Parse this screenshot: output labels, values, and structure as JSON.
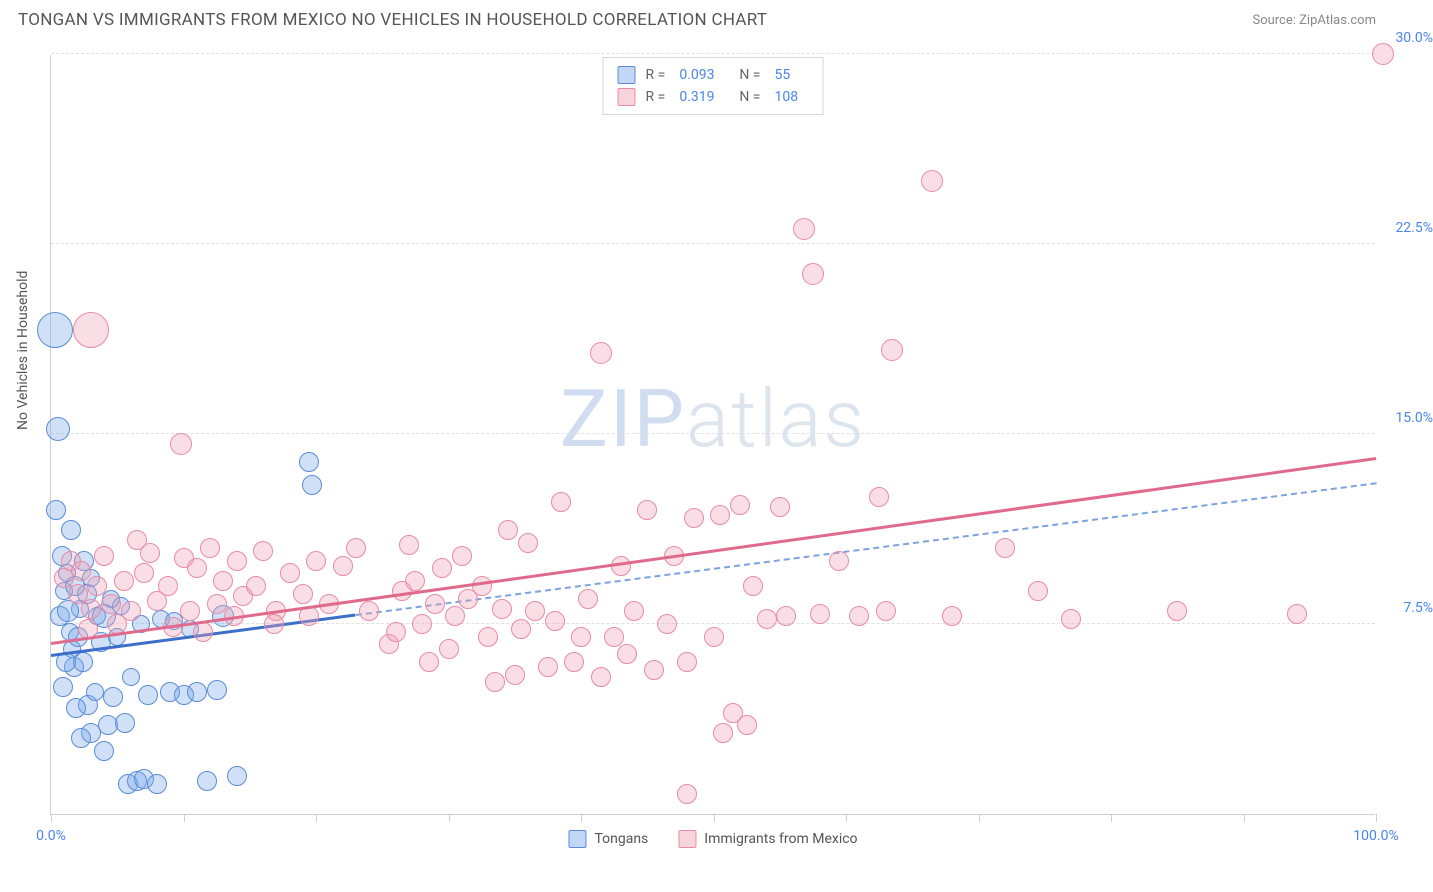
{
  "header": {
    "title": "TONGAN VS IMMIGRANTS FROM MEXICO NO VEHICLES IN HOUSEHOLD CORRELATION CHART",
    "source": "Source: ZipAtlas.com"
  },
  "chart": {
    "type": "scatter",
    "y_axis_title": "No Vehicles in Household",
    "xlim": [
      0,
      100
    ],
    "ylim": [
      0,
      30
    ],
    "x_ticks": [
      0,
      10,
      20,
      30,
      40,
      50,
      60,
      70,
      80,
      90,
      100
    ],
    "x_tick_labels": {
      "0": "0.0%",
      "100": "100.0%"
    },
    "y_ticks": [
      7.5,
      15.0,
      22.5,
      30.0
    ],
    "y_tick_labels": [
      "7.5%",
      "15.0%",
      "22.5%",
      "30.0%"
    ],
    "grid_color": "#e0e0e0",
    "background_color": "#ffffff",
    "series": [
      {
        "name": "Tongans",
        "color_fill": "rgba(118,166,232,0.35)",
        "color_stroke": "#5b8dd6",
        "R": 0.093,
        "N": 55,
        "trend": {
          "x1": 0,
          "y1": 6.2,
          "x2": 23,
          "y2": 7.8,
          "style": "solid",
          "color": "#3b6fc9",
          "width": 2.5
        },
        "trend_extended": {
          "x1": 23,
          "y1": 7.8,
          "x2": 100,
          "y2": 13.0,
          "style": "dashed",
          "color": "#7ba3e0",
          "width": 2
        },
        "points": [
          {
            "x": 0.5,
            "y": 15.2,
            "r": 12
          },
          {
            "x": 0.3,
            "y": 19.1,
            "r": 18
          },
          {
            "x": 0.8,
            "y": 10.2,
            "r": 10
          },
          {
            "x": 1.0,
            "y": 8.8,
            "r": 9
          },
          {
            "x": 1.2,
            "y": 9.5,
            "r": 9
          },
          {
            "x": 1.4,
            "y": 7.2,
            "r": 9
          },
          {
            "x": 1.6,
            "y": 6.5,
            "r": 9
          },
          {
            "x": 1.7,
            "y": 5.8,
            "r": 10
          },
          {
            "x": 2.0,
            "y": 7.0,
            "r": 10
          },
          {
            "x": 2.2,
            "y": 8.1,
            "r": 9
          },
          {
            "x": 2.4,
            "y": 6.0,
            "r": 10
          },
          {
            "x": 2.8,
            "y": 4.3,
            "r": 10
          },
          {
            "x": 3.0,
            "y": 3.2,
            "r": 10
          },
          {
            "x": 3.3,
            "y": 4.8,
            "r": 9
          },
          {
            "x": 3.5,
            "y": 7.8,
            "r": 9
          },
          {
            "x": 3.8,
            "y": 6.8,
            "r": 10
          },
          {
            "x": 4.0,
            "y": 2.5,
            "r": 10
          },
          {
            "x": 4.3,
            "y": 3.5,
            "r": 10
          },
          {
            "x": 4.7,
            "y": 4.6,
            "r": 10
          },
          {
            "x": 5.0,
            "y": 7.0,
            "r": 9
          },
          {
            "x": 5.3,
            "y": 8.2,
            "r": 9
          },
          {
            "x": 5.8,
            "y": 1.2,
            "r": 10
          },
          {
            "x": 6.0,
            "y": 5.4,
            "r": 9
          },
          {
            "x": 6.5,
            "y": 1.3,
            "r": 10
          },
          {
            "x": 1.5,
            "y": 11.2,
            "r": 10
          },
          {
            "x": 7.0,
            "y": 1.4,
            "r": 10
          },
          {
            "x": 7.3,
            "y": 4.7,
            "r": 10
          },
          {
            "x": 8.0,
            "y": 1.2,
            "r": 10
          },
          {
            "x": 8.3,
            "y": 7.7,
            "r": 9
          },
          {
            "x": 9.0,
            "y": 4.8,
            "r": 10
          },
          {
            "x": 9.3,
            "y": 7.6,
            "r": 9
          },
          {
            "x": 10.0,
            "y": 4.7,
            "r": 10
          },
          {
            "x": 10.5,
            "y": 7.3,
            "r": 9
          },
          {
            "x": 11.0,
            "y": 4.8,
            "r": 10
          },
          {
            "x": 11.8,
            "y": 1.3,
            "r": 10
          },
          {
            "x": 12.5,
            "y": 4.9,
            "r": 10
          },
          {
            "x": 13.0,
            "y": 7.8,
            "r": 11
          },
          {
            "x": 14.0,
            "y": 1.5,
            "r": 10
          },
          {
            "x": 19.5,
            "y": 13.9,
            "r": 10
          },
          {
            "x": 19.7,
            "y": 13.0,
            "r": 10
          },
          {
            "x": 2.5,
            "y": 10.0,
            "r": 10
          },
          {
            "x": 3.0,
            "y": 9.3,
            "r": 9
          },
          {
            "x": 0.7,
            "y": 7.8,
            "r": 10
          },
          {
            "x": 1.1,
            "y": 6.0,
            "r": 10
          },
          {
            "x": 1.9,
            "y": 4.2,
            "r": 10
          },
          {
            "x": 2.3,
            "y": 3.0,
            "r": 10
          },
          {
            "x": 4.5,
            "y": 8.5,
            "r": 9
          },
          {
            "x": 6.8,
            "y": 7.5,
            "r": 9
          },
          {
            "x": 5.6,
            "y": 3.6,
            "r": 10
          },
          {
            "x": 4.0,
            "y": 7.8,
            "r": 12
          },
          {
            "x": 2.7,
            "y": 8.7,
            "r": 10
          },
          {
            "x": 0.4,
            "y": 12.0,
            "r": 10
          },
          {
            "x": 1.3,
            "y": 8.0,
            "r": 11
          },
          {
            "x": 0.9,
            "y": 5.0,
            "r": 10
          },
          {
            "x": 1.8,
            "y": 9.0,
            "r": 10
          }
        ]
      },
      {
        "name": "Immigrants from Mexico",
        "color_fill": "rgba(240,160,180,0.35)",
        "color_stroke": "#e88ca6",
        "R": 0.319,
        "N": 108,
        "trend": {
          "x1": 0,
          "y1": 6.7,
          "x2": 100,
          "y2": 14.0,
          "style": "solid",
          "color": "#e06a8c",
          "width": 2.5
        },
        "points": [
          {
            "x": 1.0,
            "y": 9.3,
            "r": 10
          },
          {
            "x": 1.5,
            "y": 10.0,
            "r": 10
          },
          {
            "x": 2.0,
            "y": 8.7,
            "r": 10
          },
          {
            "x": 2.3,
            "y": 9.6,
            "r": 10
          },
          {
            "x": 2.8,
            "y": 7.3,
            "r": 10
          },
          {
            "x": 3.0,
            "y": 8.1,
            "r": 10
          },
          {
            "x": 3.0,
            "y": 19.1,
            "r": 18
          },
          {
            "x": 3.5,
            "y": 9.0,
            "r": 10
          },
          {
            "x": 4.0,
            "y": 10.2,
            "r": 10
          },
          {
            "x": 4.5,
            "y": 8.3,
            "r": 10
          },
          {
            "x": 5.0,
            "y": 7.5,
            "r": 10
          },
          {
            "x": 5.5,
            "y": 9.2,
            "r": 10
          },
          {
            "x": 6.0,
            "y": 8.0,
            "r": 10
          },
          {
            "x": 7.0,
            "y": 9.5,
            "r": 10
          },
          {
            "x": 7.5,
            "y": 10.3,
            "r": 10
          },
          {
            "x": 8.0,
            "y": 8.4,
            "r": 10
          },
          {
            "x": 8.8,
            "y": 9.0,
            "r": 10
          },
          {
            "x": 9.8,
            "y": 14.6,
            "r": 11
          },
          {
            "x": 10.0,
            "y": 10.1,
            "r": 10
          },
          {
            "x": 10.5,
            "y": 8.0,
            "r": 10
          },
          {
            "x": 11.0,
            "y": 9.7,
            "r": 10
          },
          {
            "x": 12.0,
            "y": 10.5,
            "r": 10
          },
          {
            "x": 12.5,
            "y": 8.3,
            "r": 10
          },
          {
            "x": 13.0,
            "y": 9.2,
            "r": 10
          },
          {
            "x": 14.0,
            "y": 10.0,
            "r": 10
          },
          {
            "x": 14.5,
            "y": 8.6,
            "r": 10
          },
          {
            "x": 15.5,
            "y": 9.0,
            "r": 10
          },
          {
            "x": 16.0,
            "y": 10.4,
            "r": 10
          },
          {
            "x": 17.0,
            "y": 8.0,
            "r": 10
          },
          {
            "x": 18.0,
            "y": 9.5,
            "r": 10
          },
          {
            "x": 19.0,
            "y": 8.7,
            "r": 10
          },
          {
            "x": 20.0,
            "y": 10.0,
            "r": 10
          },
          {
            "x": 21.0,
            "y": 8.3,
            "r": 10
          },
          {
            "x": 22.0,
            "y": 9.8,
            "r": 10
          },
          {
            "x": 23.0,
            "y": 10.5,
            "r": 10
          },
          {
            "x": 24.0,
            "y": 8.0,
            "r": 10
          },
          {
            "x": 25.5,
            "y": 6.7,
            "r": 10
          },
          {
            "x": 26.0,
            "y": 7.2,
            "r": 10
          },
          {
            "x": 26.5,
            "y": 8.8,
            "r": 10
          },
          {
            "x": 27.0,
            "y": 10.6,
            "r": 10
          },
          {
            "x": 27.5,
            "y": 9.2,
            "r": 10
          },
          {
            "x": 28.0,
            "y": 7.5,
            "r": 10
          },
          {
            "x": 28.5,
            "y": 6.0,
            "r": 10
          },
          {
            "x": 29.0,
            "y": 8.3,
            "r": 10
          },
          {
            "x": 29.5,
            "y": 9.7,
            "r": 10
          },
          {
            "x": 30.0,
            "y": 6.5,
            "r": 10
          },
          {
            "x": 30.5,
            "y": 7.8,
            "r": 10
          },
          {
            "x": 31.0,
            "y": 10.2,
            "r": 10
          },
          {
            "x": 31.5,
            "y": 8.5,
            "r": 10
          },
          {
            "x": 32.5,
            "y": 9.0,
            "r": 10
          },
          {
            "x": 33.0,
            "y": 7.0,
            "r": 10
          },
          {
            "x": 33.5,
            "y": 5.2,
            "r": 10
          },
          {
            "x": 34.0,
            "y": 8.1,
            "r": 10
          },
          {
            "x": 34.5,
            "y": 11.2,
            "r": 10
          },
          {
            "x": 35.0,
            "y": 5.5,
            "r": 10
          },
          {
            "x": 35.5,
            "y": 7.3,
            "r": 10
          },
          {
            "x": 36.0,
            "y": 10.7,
            "r": 10
          },
          {
            "x": 36.5,
            "y": 8.0,
            "r": 10
          },
          {
            "x": 37.5,
            "y": 5.8,
            "r": 10
          },
          {
            "x": 38.0,
            "y": 7.6,
            "r": 10
          },
          {
            "x": 38.5,
            "y": 12.3,
            "r": 10
          },
          {
            "x": 39.5,
            "y": 6.0,
            "r": 10
          },
          {
            "x": 40.0,
            "y": 7.0,
            "r": 10
          },
          {
            "x": 40.5,
            "y": 8.5,
            "r": 10
          },
          {
            "x": 41.5,
            "y": 5.4,
            "r": 10
          },
          {
            "x": 41.5,
            "y": 18.2,
            "r": 11
          },
          {
            "x": 42.5,
            "y": 7.0,
            "r": 10
          },
          {
            "x": 43.0,
            "y": 9.8,
            "r": 10
          },
          {
            "x": 43.5,
            "y": 6.3,
            "r": 10
          },
          {
            "x": 44.0,
            "y": 8.0,
            "r": 10
          },
          {
            "x": 45.0,
            "y": 12.0,
            "r": 10
          },
          {
            "x": 45.5,
            "y": 5.7,
            "r": 10
          },
          {
            "x": 46.5,
            "y": 7.5,
            "r": 10
          },
          {
            "x": 47.0,
            "y": 10.2,
            "r": 10
          },
          {
            "x": 48.0,
            "y": 6.0,
            "r": 10
          },
          {
            "x": 48.0,
            "y": 0.8,
            "r": 10
          },
          {
            "x": 48.5,
            "y": 11.7,
            "r": 10
          },
          {
            "x": 50.0,
            "y": 7.0,
            "r": 10
          },
          {
            "x": 50.5,
            "y": 11.8,
            "r": 10
          },
          {
            "x": 50.7,
            "y": 3.2,
            "r": 10
          },
          {
            "x": 51.5,
            "y": 4.0,
            "r": 10
          },
          {
            "x": 52.0,
            "y": 12.2,
            "r": 10
          },
          {
            "x": 52.5,
            "y": 3.5,
            "r": 10
          },
          {
            "x": 53.0,
            "y": 9.0,
            "r": 10
          },
          {
            "x": 54.0,
            "y": 7.7,
            "r": 10
          },
          {
            "x": 55.0,
            "y": 12.1,
            "r": 10
          },
          {
            "x": 55.5,
            "y": 7.8,
            "r": 10
          },
          {
            "x": 56.8,
            "y": 23.1,
            "r": 11
          },
          {
            "x": 57.5,
            "y": 21.3,
            "r": 11
          },
          {
            "x": 58.0,
            "y": 7.9,
            "r": 10
          },
          {
            "x": 59.5,
            "y": 10.0,
            "r": 10
          },
          {
            "x": 61.0,
            "y": 7.8,
            "r": 10
          },
          {
            "x": 62.5,
            "y": 12.5,
            "r": 10
          },
          {
            "x": 63.0,
            "y": 8.0,
            "r": 10
          },
          {
            "x": 63.5,
            "y": 18.3,
            "r": 11
          },
          {
            "x": 66.5,
            "y": 25.0,
            "r": 11
          },
          {
            "x": 68.0,
            "y": 7.8,
            "r": 10
          },
          {
            "x": 72.0,
            "y": 10.5,
            "r": 10
          },
          {
            "x": 74.5,
            "y": 8.8,
            "r": 10
          },
          {
            "x": 77.0,
            "y": 7.7,
            "r": 10
          },
          {
            "x": 85.0,
            "y": 8.0,
            "r": 10
          },
          {
            "x": 94.0,
            "y": 7.9,
            "r": 10
          },
          {
            "x": 100.5,
            "y": 30.0,
            "r": 11
          },
          {
            "x": 6.5,
            "y": 10.8,
            "r": 10
          },
          {
            "x": 9.2,
            "y": 7.4,
            "r": 10
          },
          {
            "x": 11.5,
            "y": 7.2,
            "r": 10
          },
          {
            "x": 13.8,
            "y": 7.8,
            "r": 10
          },
          {
            "x": 16.8,
            "y": 7.5,
            "r": 10
          },
          {
            "x": 19.5,
            "y": 7.8,
            "r": 10
          }
        ]
      }
    ],
    "legend": [
      {
        "swatch": "blue",
        "label": "Tongans"
      },
      {
        "swatch": "pink",
        "label": "Immigrants from Mexico"
      }
    ],
    "watermark": {
      "bold": "ZIP",
      "thin": "atlas"
    }
  }
}
